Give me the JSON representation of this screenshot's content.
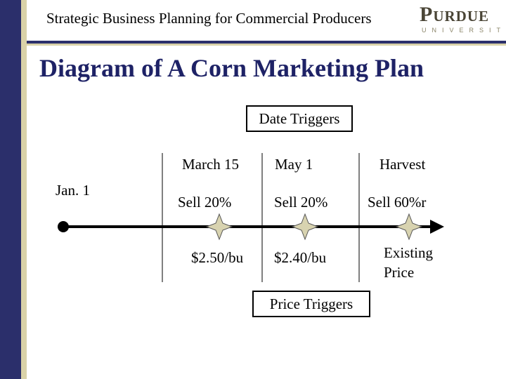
{
  "header": {
    "title": "Strategic Business Planning for Commercial Producers",
    "logo_word": "Purdue",
    "logo_sub": "UNIVERSITY"
  },
  "slide": {
    "title": "Diagram of A Corn Marketing Plan"
  },
  "diagram": {
    "date_triggers_label": "Date Triggers",
    "price_triggers_label": "Price Triggers",
    "start_label": "Jan. 1",
    "columns": [
      {
        "date": "March 15",
        "sell": "Sell 20%",
        "price": "$2.50/bu"
      },
      {
        "date": "May 1",
        "sell": "Sell 20%",
        "price": "$2.40/bu"
      },
      {
        "date": "Harvest",
        "sell": "Sell 60%r",
        "price_line1": "Existing",
        "price_line2": "Price"
      }
    ]
  },
  "colors": {
    "navy": "#2b2f6b",
    "tan": "#d9d2a8",
    "title_blue": "#1e2266",
    "star_fill": "#d8d3b0"
  }
}
